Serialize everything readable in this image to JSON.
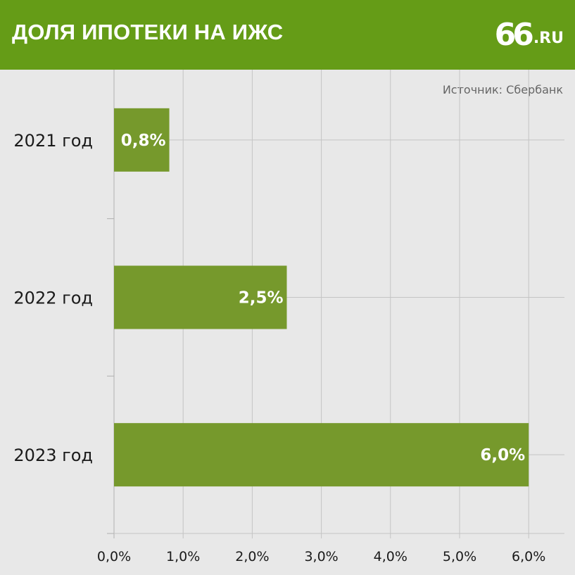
{
  "header": {
    "title": "ДОЛЯ ИПОТЕКИ НА ИЖС",
    "logo_number": "66",
    "logo_suffix": ".RU"
  },
  "source": "Источник: Сбербанк",
  "colors": {
    "header": "#659c17",
    "bar": "#76992c",
    "background": "#e8e8e8",
    "grid": "#c4c4c4"
  },
  "chart_data": {
    "type": "bar",
    "orientation": "horizontal",
    "categories": [
      "2021 год",
      "2022 год",
      "2023 год"
    ],
    "values": [
      0.8,
      2.5,
      6.0
    ],
    "value_labels": [
      "0,8%",
      "2,5%",
      "6,0%"
    ],
    "xlim": [
      0,
      6.5
    ],
    "xticks": [
      0,
      1,
      2,
      3,
      4,
      5,
      6
    ],
    "xtick_labels": [
      "0,0%",
      "1,0%",
      "2,0%",
      "3,0%",
      "4,0%",
      "5,0%",
      "6,0%"
    ],
    "grid": true
  }
}
